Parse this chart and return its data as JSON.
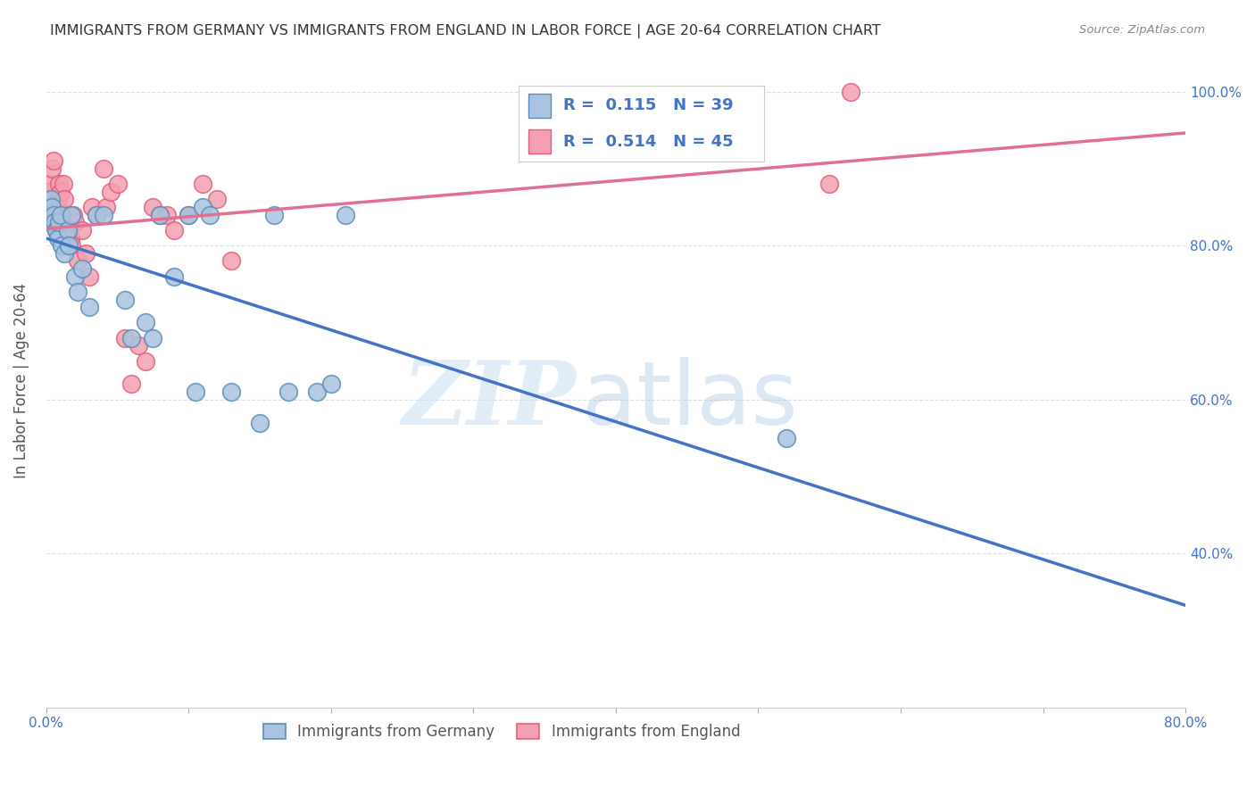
{
  "title": "IMMIGRANTS FROM GERMANY VS IMMIGRANTS FROM ENGLAND IN LABOR FORCE | AGE 20-64 CORRELATION CHART",
  "source": "Source: ZipAtlas.com",
  "ylabel": "In Labor Force | Age 20-64",
  "xmin": 0.0,
  "xmax": 0.8,
  "ymin": 0.2,
  "ymax": 1.05,
  "xtick_labels": [
    "0.0%",
    "",
    "",
    "",
    "",
    "",
    "",
    "",
    "80.0%"
  ],
  "xtick_values": [
    0.0,
    0.1,
    0.2,
    0.3,
    0.4,
    0.5,
    0.6,
    0.7,
    0.8
  ],
  "ytick_labels": [
    "40.0%",
    "60.0%",
    "80.0%",
    "100.0%"
  ],
  "ytick_values": [
    0.4,
    0.6,
    0.8,
    1.0
  ],
  "germany_color": "#a8c4e0",
  "england_color": "#f4a0b0",
  "germany_edge_color": "#5b8db8",
  "england_edge_color": "#e06080",
  "germany_line_color": "#4472c4",
  "england_line_color": "#e07090",
  "R_germany": 0.115,
  "N_germany": 39,
  "R_england": 0.514,
  "N_england": 45,
  "germany_label": "Immigrants from Germany",
  "england_label": "Immigrants from England",
  "watermark_zip": "ZIP",
  "watermark_atlas": "atlas",
  "germany_x": [
    0.001,
    0.002,
    0.003,
    0.004,
    0.005,
    0.006,
    0.007,
    0.008,
    0.009,
    0.01,
    0.011,
    0.013,
    0.015,
    0.016,
    0.018,
    0.02,
    0.022,
    0.025,
    0.03,
    0.035,
    0.04,
    0.055,
    0.06,
    0.07,
    0.075,
    0.08,
    0.09,
    0.1,
    0.105,
    0.11,
    0.115,
    0.13,
    0.15,
    0.16,
    0.17,
    0.19,
    0.2,
    0.21,
    0.52
  ],
  "germany_y": [
    0.84,
    0.83,
    0.86,
    0.85,
    0.84,
    0.83,
    0.82,
    0.81,
    0.83,
    0.84,
    0.8,
    0.79,
    0.82,
    0.8,
    0.84,
    0.76,
    0.74,
    0.77,
    0.72,
    0.84,
    0.84,
    0.73,
    0.68,
    0.7,
    0.68,
    0.84,
    0.76,
    0.84,
    0.61,
    0.85,
    0.84,
    0.61,
    0.57,
    0.84,
    0.61,
    0.61,
    0.62,
    0.84,
    0.55
  ],
  "england_x": [
    0.001,
    0.002,
    0.003,
    0.004,
    0.005,
    0.005,
    0.006,
    0.007,
    0.008,
    0.009,
    0.01,
    0.011,
    0.012,
    0.013,
    0.014,
    0.015,
    0.016,
    0.017,
    0.018,
    0.019,
    0.02,
    0.022,
    0.025,
    0.028,
    0.03,
    0.032,
    0.035,
    0.04,
    0.042,
    0.045,
    0.05,
    0.055,
    0.06,
    0.065,
    0.07,
    0.075,
    0.08,
    0.085,
    0.09,
    0.1,
    0.11,
    0.12,
    0.13,
    0.55,
    0.565
  ],
  "england_y": [
    0.87,
    0.88,
    0.85,
    0.9,
    0.91,
    0.84,
    0.83,
    0.82,
    0.86,
    0.88,
    0.87,
    0.84,
    0.88,
    0.86,
    0.83,
    0.82,
    0.84,
    0.81,
    0.8,
    0.84,
    0.83,
    0.78,
    0.82,
    0.79,
    0.76,
    0.85,
    0.84,
    0.9,
    0.85,
    0.87,
    0.88,
    0.68,
    0.62,
    0.67,
    0.65,
    0.85,
    0.84,
    0.84,
    0.82,
    0.84,
    0.88,
    0.86,
    0.78,
    0.88,
    1.0
  ],
  "background_color": "#ffffff",
  "grid_color": "#dddddd"
}
